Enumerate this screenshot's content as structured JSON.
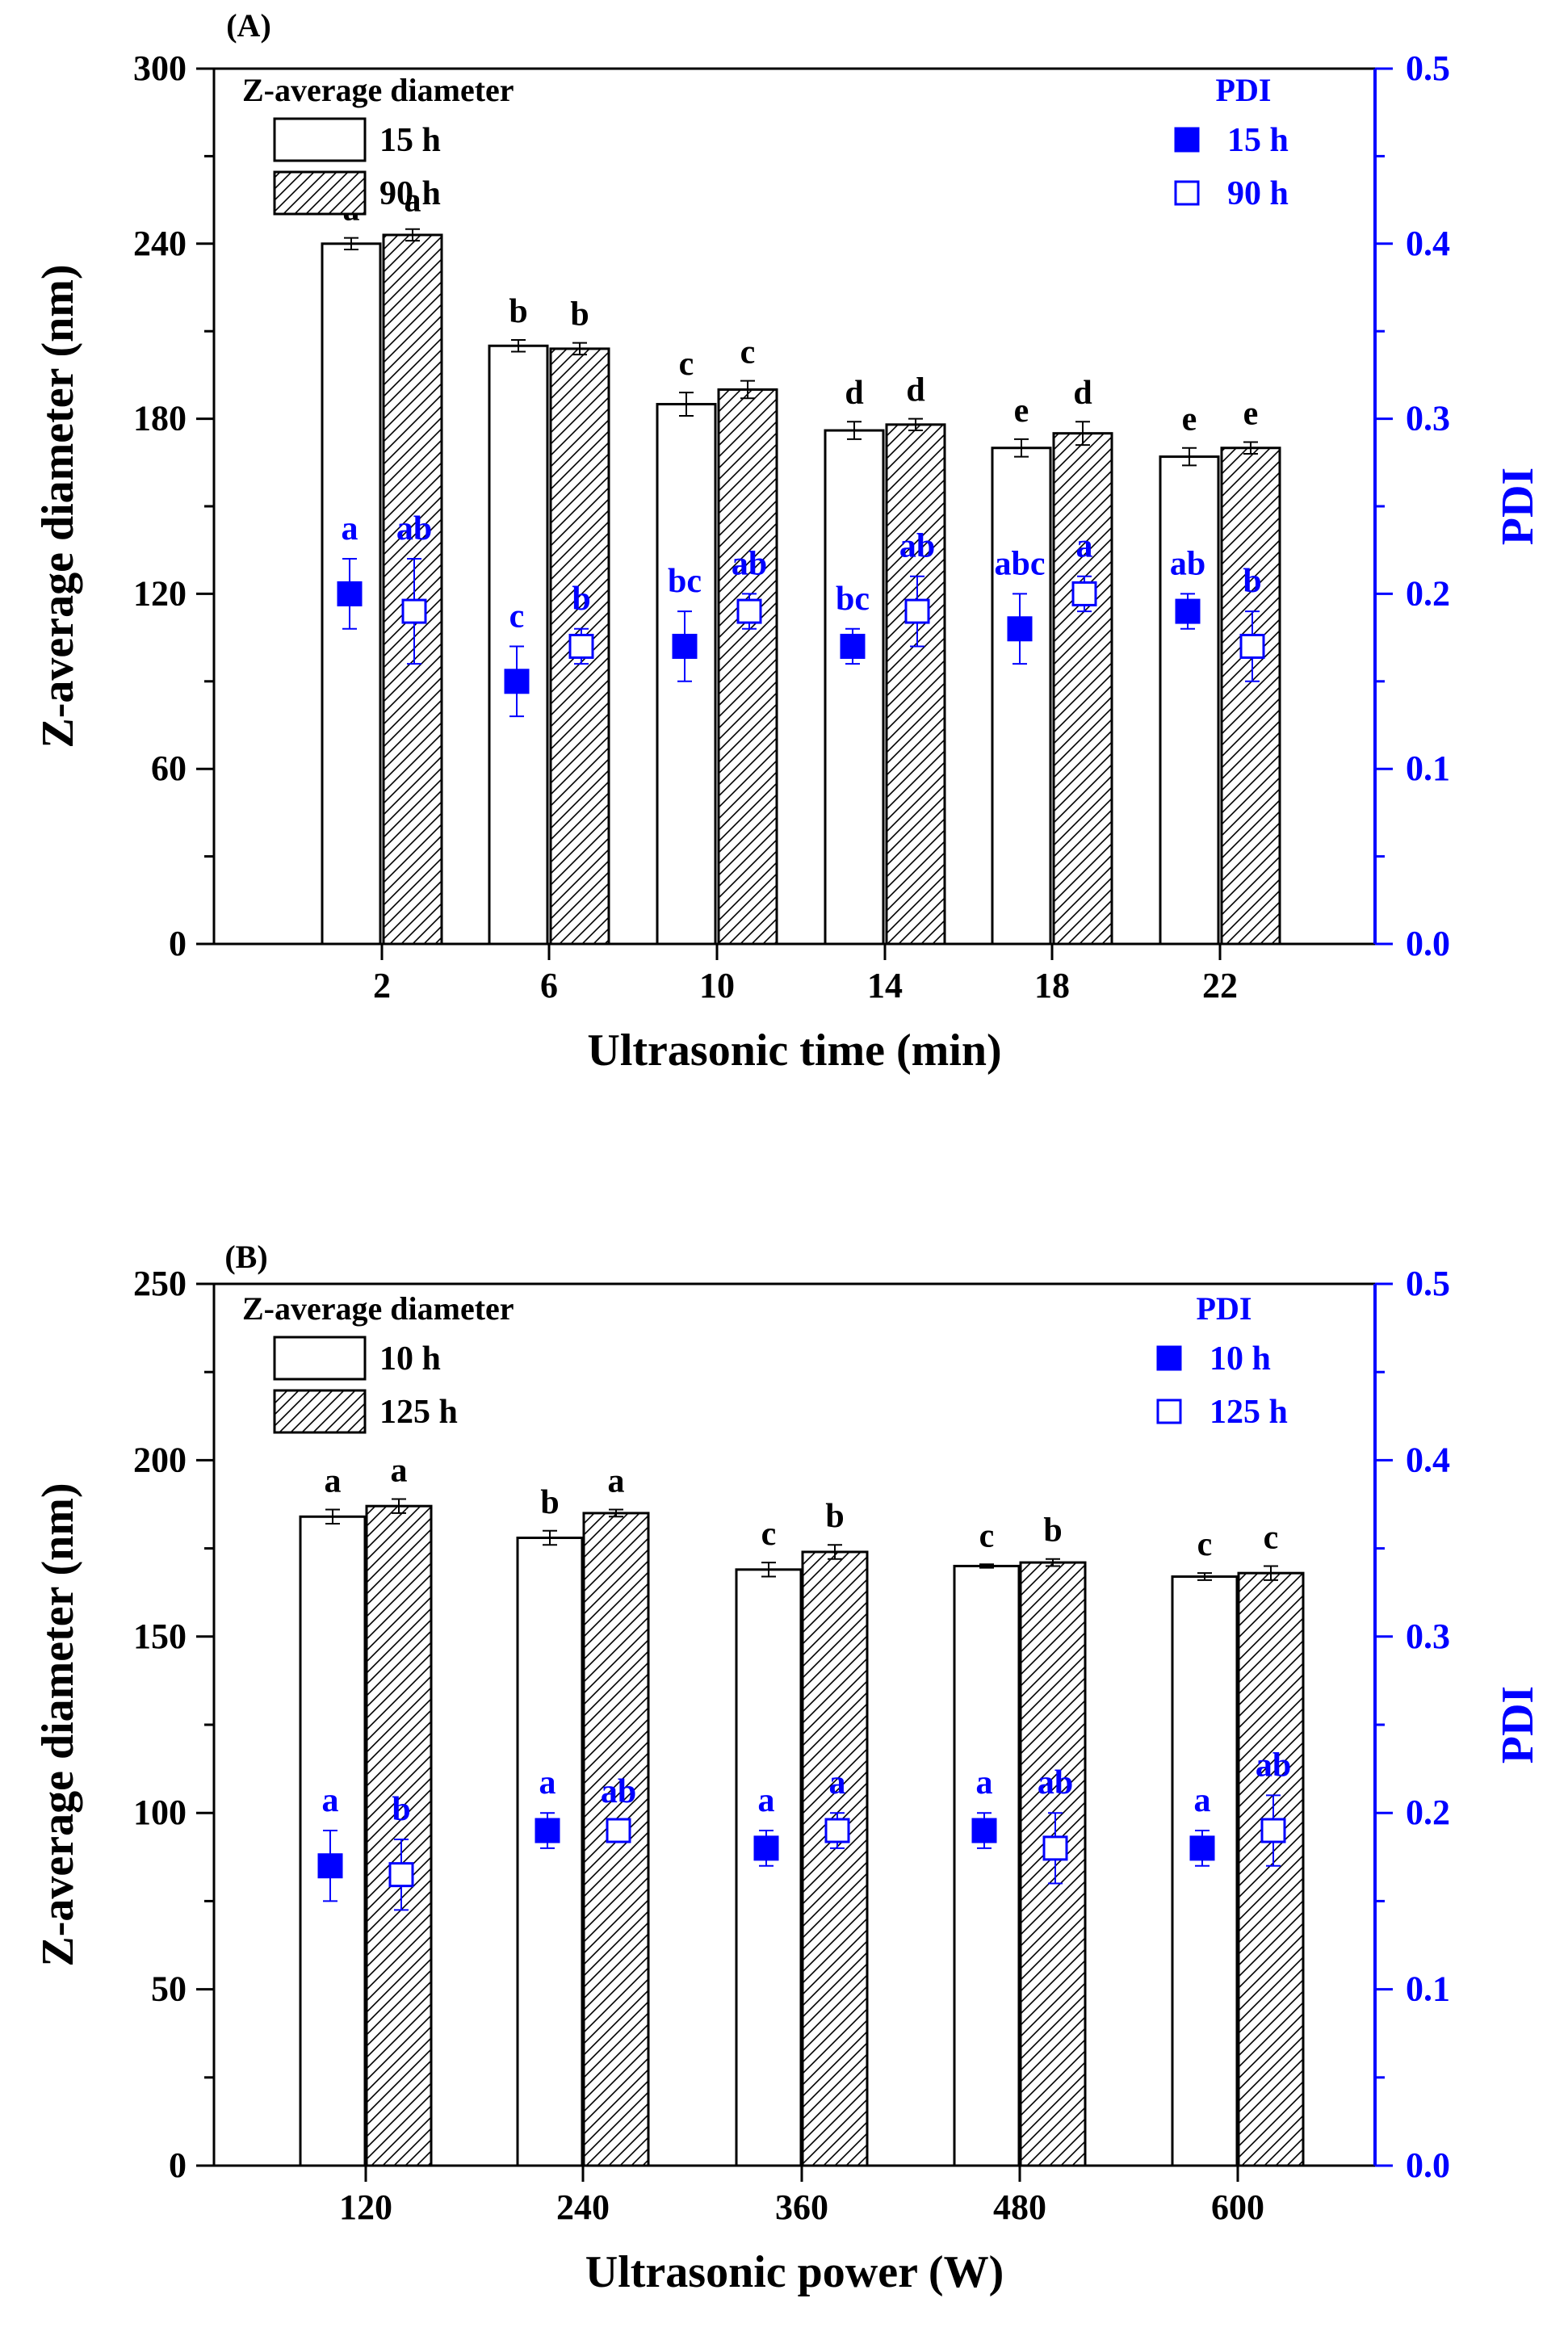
{
  "colors": {
    "black": "#000000",
    "blue": "#0000ff"
  },
  "chart_data": [
    {
      "type": "bar",
      "panel_label": "(A)",
      "xlabel": "Ultrasonic time (min)",
      "ylabel": "Z-average diameter (nm)",
      "ylabel2": "PDI",
      "categories": [
        "2",
        "6",
        "10",
        "14",
        "18",
        "22"
      ],
      "ylim": [
        0,
        300
      ],
      "yticks": [
        "0",
        "60",
        "120",
        "180",
        "240",
        "300"
      ],
      "ylim2": [
        0.0,
        0.5
      ],
      "yticks2": [
        "0.0",
        "0.1",
        "0.2",
        "0.3",
        "0.4",
        "0.5"
      ],
      "legend_left_title": "Z-average diameter",
      "legend_right_title": "PDI",
      "bar_series": [
        {
          "name": "15 h",
          "pattern": "open",
          "values": [
            240,
            205,
            185,
            176,
            170,
            167
          ],
          "errors": [
            2,
            2,
            4,
            3,
            3,
            3
          ],
          "letters": [
            "a",
            "b",
            "c",
            "d",
            "e",
            "e"
          ]
        },
        {
          "name": "90 h",
          "pattern": "hatched",
          "values": [
            243,
            204,
            190,
            178,
            175,
            170
          ],
          "errors": [
            2,
            2,
            3,
            2,
            4,
            2
          ],
          "letters": [
            "a",
            "b",
            "c",
            "d",
            "d",
            "e"
          ]
        }
      ],
      "pdi_series": [
        {
          "name": "15 h",
          "marker": "filled-square",
          "values": [
            0.2,
            0.15,
            0.17,
            0.17,
            0.18,
            0.19
          ],
          "errors": [
            0.02,
            0.02,
            0.02,
            0.01,
            0.02,
            0.01
          ],
          "letters": [
            "a",
            "c",
            "bc",
            "bc",
            "abc",
            "ab"
          ]
        },
        {
          "name": "90 h",
          "marker": "open-square",
          "values": [
            0.19,
            0.17,
            0.19,
            0.19,
            0.2,
            0.17
          ],
          "errors": [
            0.03,
            0.01,
            0.01,
            0.02,
            0.01,
            0.02
          ],
          "letters": [
            "ab",
            "b",
            "ab",
            "ab",
            "a",
            "b"
          ]
        }
      ]
    },
    {
      "type": "bar",
      "panel_label": "(B)",
      "xlabel": "Ultrasonic power (W)",
      "ylabel": "Z-average diameter (nm)",
      "ylabel2": "PDI",
      "categories": [
        "120",
        "240",
        "360",
        "480",
        "600"
      ],
      "ylim": [
        0,
        250
      ],
      "yticks": [
        "0",
        "50",
        "100",
        "150",
        "200",
        "250"
      ],
      "ylim2": [
        0.0,
        0.5
      ],
      "yticks2": [
        "0.0",
        "0.1",
        "0.2",
        "0.3",
        "0.4",
        "0.5"
      ],
      "legend_left_title": "Z-average diameter",
      "legend_right_title": "PDI",
      "bar_series": [
        {
          "name": "10 h",
          "pattern": "open",
          "values": [
            184,
            178,
            169,
            170,
            167
          ],
          "errors": [
            2,
            2,
            2,
            0.5,
            1
          ],
          "letters": [
            "a",
            "b",
            "c",
            "c",
            "c"
          ]
        },
        {
          "name": "125 h",
          "pattern": "hatched",
          "values": [
            187,
            185,
            174,
            171,
            168
          ],
          "errors": [
            2,
            1,
            2,
            1,
            2
          ],
          "letters": [
            "a",
            "a",
            "b",
            "b",
            "c"
          ]
        }
      ],
      "pdi_series": [
        {
          "name": "10 h",
          "marker": "filled-square",
          "values": [
            0.17,
            0.19,
            0.18,
            0.19,
            0.18
          ],
          "errors": [
            0.02,
            0.01,
            0.01,
            0.01,
            0.01
          ],
          "letters": [
            "a",
            "a",
            "a",
            "a",
            "a"
          ]
        },
        {
          "name": "125 h",
          "marker": "open-square",
          "values": [
            0.165,
            0.19,
            0.19,
            0.18,
            0.19
          ],
          "errors": [
            0.02,
            0.005,
            0.01,
            0.02,
            0.02
          ],
          "letters": [
            "b",
            "ab",
            "a",
            "ab",
            "ab"
          ]
        }
      ]
    }
  ]
}
